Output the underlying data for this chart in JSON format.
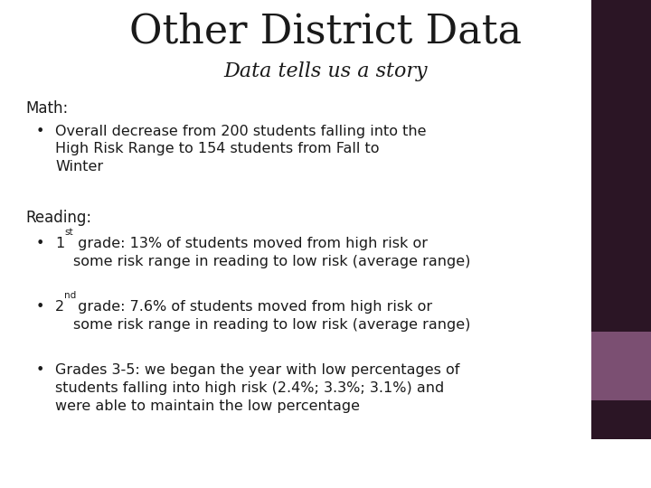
{
  "title": "Other District Data",
  "subtitle": "Data tells us a story",
  "title_fontsize": 32,
  "subtitle_fontsize": 16,
  "body_fontsize": 11.5,
  "label_fontsize": 12,
  "background_color": "#ffffff",
  "text_color": "#1a1a1a",
  "dark_panel_color": "#2b1525",
  "purple_panel_color": "#7b4f72",
  "math_label": "Math:",
  "math_bullet": "Overall decrease from 200 students falling into the\nHigh Risk Range to 154 students from Fall to\nWinter",
  "reading_label": "Reading:",
  "reading_bullet1_pre": "1",
  "reading_bullet1_sup": "st",
  "reading_bullet1_rest": " grade: 13% of students moved from high risk or\nsome risk range in reading to low risk (average range)",
  "reading_bullet2_pre": "2",
  "reading_bullet2_sup": "nd",
  "reading_bullet2_rest": " grade: 7.6% of students moved from high risk or\nsome risk range in reading to low risk (average range)",
  "reading_bullet3": "Grades 3-5: we began the year with low percentages of\nstudents falling into high risk (2.4%; 3.3%; 3.1%) and\nwere able to maintain the low percentage"
}
